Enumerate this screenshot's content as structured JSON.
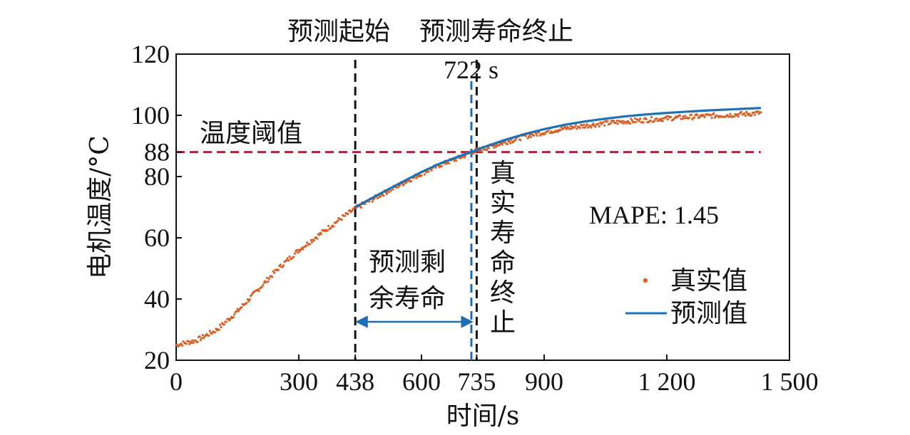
{
  "chart_data": {
    "type": "line",
    "title": "",
    "xlabel": "时间/s",
    "ylabel": "电机温度/°C",
    "xlim": [
      0,
      1500
    ],
    "ylim": [
      20,
      120
    ],
    "xticks": [
      0,
      300,
      438,
      600,
      735,
      900,
      1200,
      1500
    ],
    "xtick_labels": [
      "0",
      "300",
      "438",
      "600",
      "735",
      "900",
      "1 200",
      "1 500"
    ],
    "yticks": [
      20,
      40,
      60,
      80,
      88,
      100,
      120
    ],
    "ytick_labels": [
      "20",
      "40",
      "60",
      "80",
      "88",
      "100",
      "120"
    ],
    "grid": false,
    "legend_position": "bottom-right",
    "series": [
      {
        "name": "真实值",
        "style": "points",
        "color": "#d4622a",
        "x": [
          0,
          50,
          100,
          150,
          200,
          250,
          300,
          350,
          400,
          438,
          500,
          550,
          600,
          650,
          700,
          722,
          750,
          800,
          850,
          900,
          950,
          1000,
          1050,
          1100,
          1150,
          1200,
          1250,
          1300,
          1350,
          1400,
          1430
        ],
        "y": [
          25,
          26.5,
          30,
          36,
          43,
          50,
          56,
          61,
          66,
          69.5,
          74,
          77.5,
          81,
          84,
          86.5,
          88,
          89,
          91,
          93,
          94.5,
          95.7,
          96.6,
          97.4,
          98,
          98.5,
          99,
          99.4,
          99.8,
          100.1,
          100.5,
          100.8
        ]
      },
      {
        "name": "预测值",
        "style": "line",
        "color": "#1f6fb4",
        "x": [
          438,
          500,
          550,
          600,
          650,
          700,
          722,
          750,
          800,
          850,
          900,
          950,
          1000,
          1050,
          1100,
          1150,
          1200,
          1250,
          1300,
          1350,
          1400,
          1430
        ],
        "y": [
          70,
          74.5,
          78,
          81.5,
          84.5,
          87,
          88,
          89.5,
          91.8,
          93.8,
          95.5,
          96.9,
          98,
          98.9,
          99.7,
          100.3,
          100.8,
          101.2,
          101.6,
          101.9,
          102.2,
          102.4
        ]
      }
    ],
    "reference_lines": [
      {
        "kind": "horizontal",
        "value": 88,
        "label": "温度阈值",
        "color": "#a3283c",
        "dash": true
      },
      {
        "kind": "vertical",
        "value": 438,
        "label": "预测起始",
        "color": "#111111",
        "dash": true
      },
      {
        "kind": "vertical",
        "value": 722,
        "label": "预测寿命终止",
        "value_label": "722 s",
        "color": "#1f6fb4",
        "dash": true
      },
      {
        "kind": "vertical",
        "value": 735,
        "label": "真实寿命终止",
        "color": "#111111",
        "dash": true
      }
    ],
    "annotations": {
      "title_left": "预测起始",
      "title_right": "预测寿命终止",
      "pred_eol_value": "722 s",
      "threshold": "温度阈值",
      "rul_line1": "预测剩",
      "rul_line2": "余寿命",
      "true_eol_chars": [
        "真",
        "实",
        "寿",
        "命",
        "终",
        "止"
      ],
      "mape": "MAPE: 1.45"
    }
  }
}
